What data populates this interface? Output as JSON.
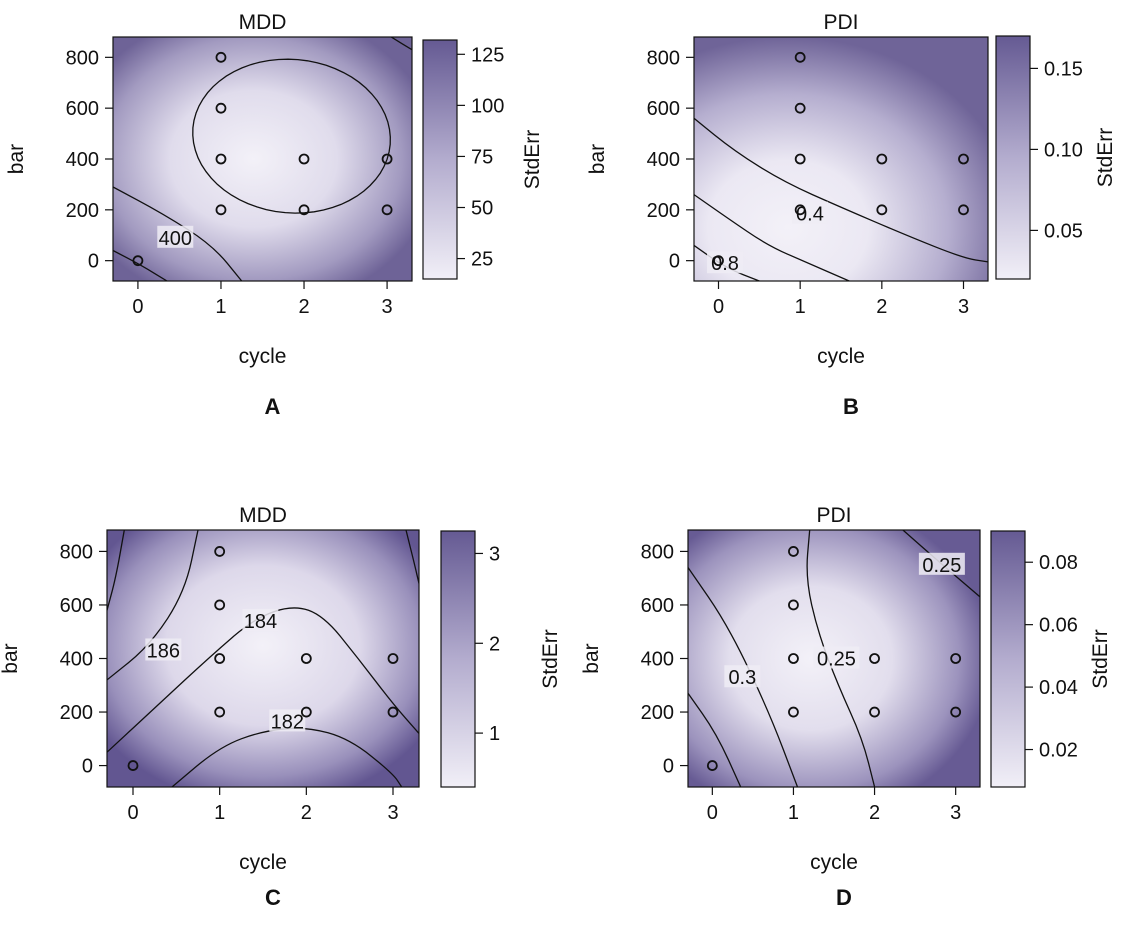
{
  "chart_data": [
    {
      "type": "heatmap",
      "panel_label": "A",
      "title": "MDD",
      "xlabel": "cycle",
      "ylabel": "bar",
      "colorbar_label": "StdErr",
      "x_ticks": [
        0,
        1,
        2,
        3
      ],
      "y_ticks": [
        0,
        200,
        400,
        600,
        800
      ],
      "xlim": [
        -0.3,
        3.3
      ],
      "ylim": [
        -80,
        880
      ],
      "colorbar_ticks": [
        25,
        50,
        75,
        100,
        125
      ],
      "colorbar_range": [
        15,
        132
      ],
      "design_points": [
        [
          0,
          0
        ],
        [
          1,
          200
        ],
        [
          1,
          400
        ],
        [
          1,
          600
        ],
        [
          1,
          800
        ],
        [
          2,
          200
        ],
        [
          2,
          400
        ],
        [
          3,
          200
        ],
        [
          3,
          400
        ]
      ],
      "contour_labels": [
        {
          "text": "400",
          "x": 0.45,
          "y": 90
        }
      ],
      "grid": false,
      "legend": "right"
    },
    {
      "type": "heatmap",
      "panel_label": "B",
      "title": "PDI",
      "xlabel": "cycle",
      "ylabel": "bar",
      "colorbar_label": "StdErr",
      "x_ticks": [
        0,
        1,
        2,
        3
      ],
      "y_ticks": [
        0,
        200,
        400,
        600,
        800
      ],
      "xlim": [
        -0.3,
        3.3
      ],
      "ylim": [
        -80,
        880
      ],
      "colorbar_ticks": [
        0.05,
        0.1,
        0.15
      ],
      "colorbar_range": [
        0.02,
        0.17
      ],
      "colorbar_tick_text": [
        "0.05",
        "0.10",
        "0.15"
      ],
      "design_points": [
        [
          0,
          0
        ],
        [
          1,
          200
        ],
        [
          1,
          400
        ],
        [
          1,
          600
        ],
        [
          1,
          800
        ],
        [
          2,
          200
        ],
        [
          2,
          400
        ],
        [
          3,
          200
        ],
        [
          3,
          400
        ]
      ],
      "contour_labels": [
        {
          "text": "0.4",
          "x": 1.12,
          "y": 185
        },
        {
          "text": "0.8",
          "x": 0.08,
          "y": -10
        }
      ],
      "grid": false,
      "legend": "right"
    },
    {
      "type": "heatmap",
      "panel_label": "C",
      "title": "MDD",
      "xlabel": "cycle",
      "ylabel": "bar",
      "colorbar_label": "StdErr",
      "x_ticks": [
        0,
        1,
        2,
        3
      ],
      "y_ticks": [
        0,
        200,
        400,
        600,
        800
      ],
      "xlim": [
        -0.3,
        3.3
      ],
      "ylim": [
        -80,
        880
      ],
      "colorbar_ticks": [
        1,
        2,
        3
      ],
      "colorbar_range": [
        0.4,
        3.25
      ],
      "design_points": [
        [
          0,
          0
        ],
        [
          1,
          200
        ],
        [
          1,
          400
        ],
        [
          1,
          600
        ],
        [
          1,
          800
        ],
        [
          2,
          200
        ],
        [
          2,
          400
        ],
        [
          3,
          200
        ],
        [
          3,
          400
        ]
      ],
      "contour_labels": [
        {
          "text": "186",
          "x": 0.35,
          "y": 430
        },
        {
          "text": "184",
          "x": 1.47,
          "y": 540
        },
        {
          "text": "182",
          "x": 1.78,
          "y": 165
        }
      ],
      "grid": false,
      "legend": "right"
    },
    {
      "type": "heatmap",
      "panel_label": "D",
      "title": "PDI",
      "xlabel": "cycle",
      "ylabel": "bar",
      "colorbar_label": "StdErr",
      "x_ticks": [
        0,
        1,
        2,
        3
      ],
      "y_ticks": [
        0,
        200,
        400,
        600,
        800
      ],
      "xlim": [
        -0.3,
        3.3
      ],
      "ylim": [
        -80,
        880
      ],
      "colorbar_ticks": [
        0.02,
        0.04,
        0.06,
        0.08
      ],
      "colorbar_range": [
        0.008,
        0.09
      ],
      "colorbar_tick_text": [
        "0.02",
        "0.04",
        "0.06",
        "0.08"
      ],
      "design_points": [
        [
          0,
          0
        ],
        [
          1,
          200
        ],
        [
          1,
          400
        ],
        [
          1,
          600
        ],
        [
          1,
          800
        ],
        [
          2,
          200
        ],
        [
          2,
          400
        ],
        [
          3,
          200
        ],
        [
          3,
          400
        ]
      ],
      "contour_labels": [
        {
          "text": "0.3",
          "x": 0.37,
          "y": 330
        },
        {
          "text": "0.25",
          "x": 1.53,
          "y": 400
        },
        {
          "text": "0.25",
          "x": 2.83,
          "y": 750
        }
      ],
      "grid": false,
      "legend": "right"
    }
  ]
}
